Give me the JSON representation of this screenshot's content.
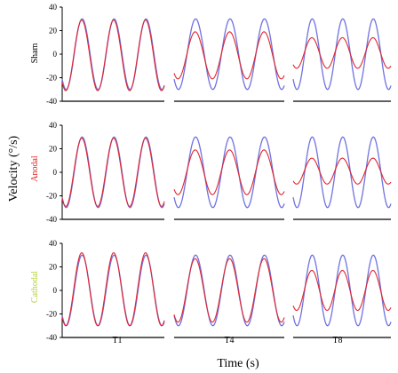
{
  "chart_data": {
    "type": "line",
    "xlabel": "Time (s)",
    "ylabel": "Velocity (°/s)",
    "ylim": [
      -40,
      40
    ],
    "yticks": [
      40,
      20,
      0,
      -20,
      -40
    ],
    "grid": false,
    "columns": [
      "T1",
      "T4",
      "T8"
    ],
    "rows": [
      {
        "label": "Sham",
        "color": "#000000"
      },
      {
        "label": "Anodal",
        "color": "#e0201b"
      },
      {
        "label": "Cathodal",
        "color": "#b4d235"
      }
    ],
    "x_range": [
      0,
      3.2
    ],
    "cycles": 3,
    "series_colors": {
      "target": "#6f72e0",
      "response": "#e0262f"
    },
    "panels": [
      {
        "row": "Sham",
        "column": "T1",
        "target": {
          "amplitude": 30
        },
        "response": {
          "amplitude": 30,
          "offset": -1
        }
      },
      {
        "row": "Sham",
        "column": "T4",
        "target": {
          "amplitude": 30
        },
        "response": {
          "amplitude": 20,
          "offset": -1
        }
      },
      {
        "row": "Sham",
        "column": "T8",
        "target": {
          "amplitude": 30
        },
        "response": {
          "amplitude": 13,
          "offset": 1
        }
      },
      {
        "row": "Anodal",
        "column": "T1",
        "target": {
          "amplitude": 30
        },
        "response": {
          "amplitude": 29,
          "offset": 0
        }
      },
      {
        "row": "Anodal",
        "column": "T4",
        "target": {
          "amplitude": 30
        },
        "response": {
          "amplitude": 19,
          "offset": 0
        }
      },
      {
        "row": "Anodal",
        "column": "T8",
        "target": {
          "amplitude": 30
        },
        "response": {
          "amplitude": 11,
          "offset": 1
        }
      },
      {
        "row": "Cathodal",
        "column": "T1",
        "target": {
          "amplitude": 30
        },
        "response": {
          "amplitude": 31,
          "offset": 1
        }
      },
      {
        "row": "Cathodal",
        "column": "T4",
        "target": {
          "amplitude": 30
        },
        "response": {
          "amplitude": 27,
          "offset": 0
        }
      },
      {
        "row": "Cathodal",
        "column": "T8",
        "target": {
          "amplitude": 30
        },
        "response": {
          "amplitude": 17,
          "offset": 0
        }
      }
    ]
  }
}
